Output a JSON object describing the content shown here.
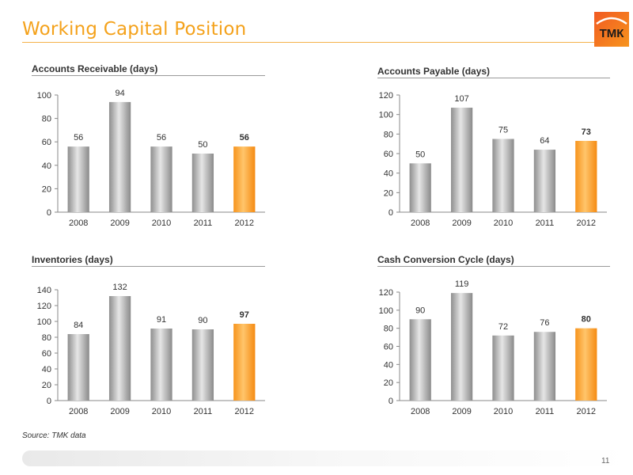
{
  "header": {
    "title": "Working Capital Position",
    "logo_text": "ТМК"
  },
  "footer": {
    "source": "Source: TMK data",
    "page_number": "11"
  },
  "colors": {
    "accent": "#f4a21c",
    "bar_gray": "#a6a6a6",
    "bar_highlight": "#f7941d"
  },
  "chart_data": [
    {
      "type": "bar",
      "title": "Accounts Receivable (days)",
      "categories": [
        "2008",
        "2009",
        "2010",
        "2011",
        "2012"
      ],
      "values": [
        56,
        94,
        56,
        50,
        56
      ],
      "value_labels": [
        "56",
        "94",
        "56",
        "50",
        "56"
      ],
      "highlight_index": 4,
      "ylim": [
        0,
        100
      ],
      "yticks": [
        "0",
        "20",
        "40",
        "60",
        "80",
        "100"
      ],
      "grid": false
    },
    {
      "type": "bar",
      "title": "Accounts Payable (days)",
      "categories": [
        "2008",
        "2009",
        "2010",
        "2011",
        "2012"
      ],
      "values": [
        50,
        107,
        75,
        64,
        73
      ],
      "value_labels": [
        "50",
        "107",
        "75",
        "64",
        "73"
      ],
      "highlight_index": 4,
      "ylim": [
        0,
        120
      ],
      "yticks": [
        "0",
        "20",
        "40",
        "60",
        "80",
        "100",
        "120"
      ],
      "grid": false
    },
    {
      "type": "bar",
      "title": "Inventories (days)",
      "categories": [
        "2008",
        "2009",
        "2010",
        "2011",
        "2012"
      ],
      "values": [
        84,
        132,
        91,
        90,
        97
      ],
      "value_labels": [
        "84",
        "132",
        "91",
        "90",
        "97"
      ],
      "highlight_index": 4,
      "ylim": [
        0,
        140
      ],
      "yticks": [
        "0",
        "20",
        "40",
        "60",
        "80",
        "100",
        "120",
        "140"
      ],
      "grid": false
    },
    {
      "type": "bar",
      "title": "Cash Conversion Cycle (days)",
      "categories": [
        "2008",
        "2009",
        "2010",
        "2011",
        "2012"
      ],
      "values": [
        90,
        119,
        72,
        76,
        80
      ],
      "value_labels": [
        "90",
        "119",
        "72",
        "76",
        "80"
      ],
      "highlight_index": 4,
      "ylim": [
        0,
        120
      ],
      "yticks": [
        "0",
        "20",
        "40",
        "60",
        "80",
        "100",
        "120"
      ],
      "grid": false
    }
  ]
}
